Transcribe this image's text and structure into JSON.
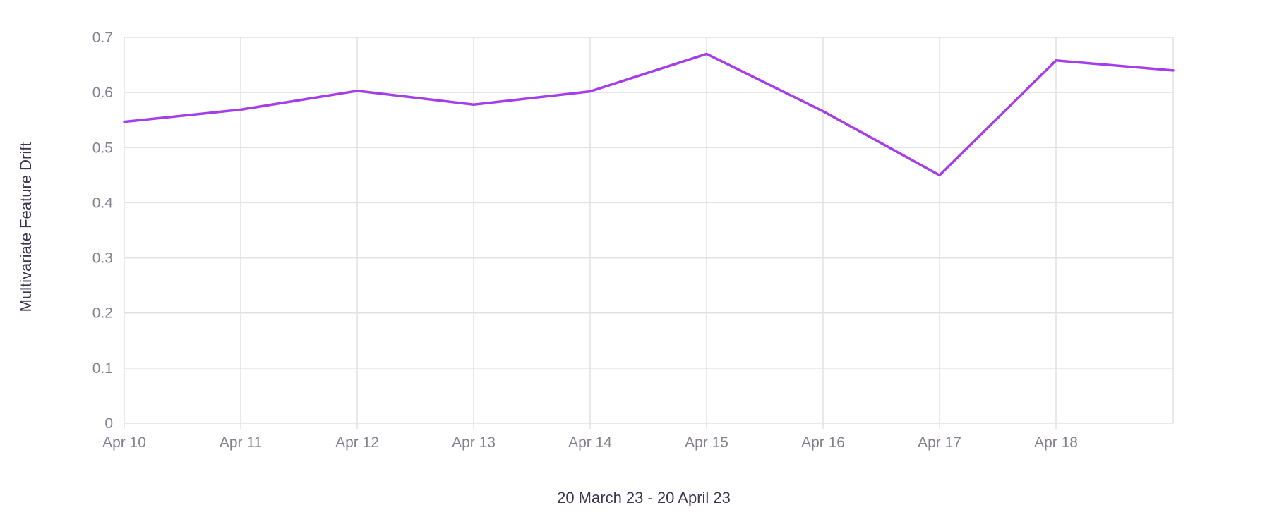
{
  "chart_data": {
    "type": "line",
    "title": "",
    "xlabel": "20 March 23  - 20 April 23",
    "ylabel": "Multivariate Feature Drift",
    "x": [
      "Apr 10",
      "Apr 11",
      "Apr 12",
      "Apr 13",
      "Apr 14",
      "Apr 15",
      "Apr 16",
      "Apr 17",
      "Apr 18",
      ""
    ],
    "x_tick_labels": [
      "Apr 10",
      "Apr 11",
      "Apr 12",
      "Apr 13",
      "Apr 14",
      "Apr 15",
      "Apr 16",
      "Apr 17",
      "Apr 18"
    ],
    "series": [
      {
        "values": [
          0.547,
          0.569,
          0.603,
          0.578,
          0.602,
          0.67,
          0.566,
          0.45,
          0.658,
          0.64
        ],
        "color": "#a53ee8"
      }
    ],
    "ylim": [
      0,
      0.7
    ],
    "y_ticks": [
      "0",
      "0.1",
      "0.2",
      "0.3",
      "0.4",
      "0.5",
      "0.6",
      "0.7"
    ],
    "grid": true,
    "legend": "none"
  }
}
